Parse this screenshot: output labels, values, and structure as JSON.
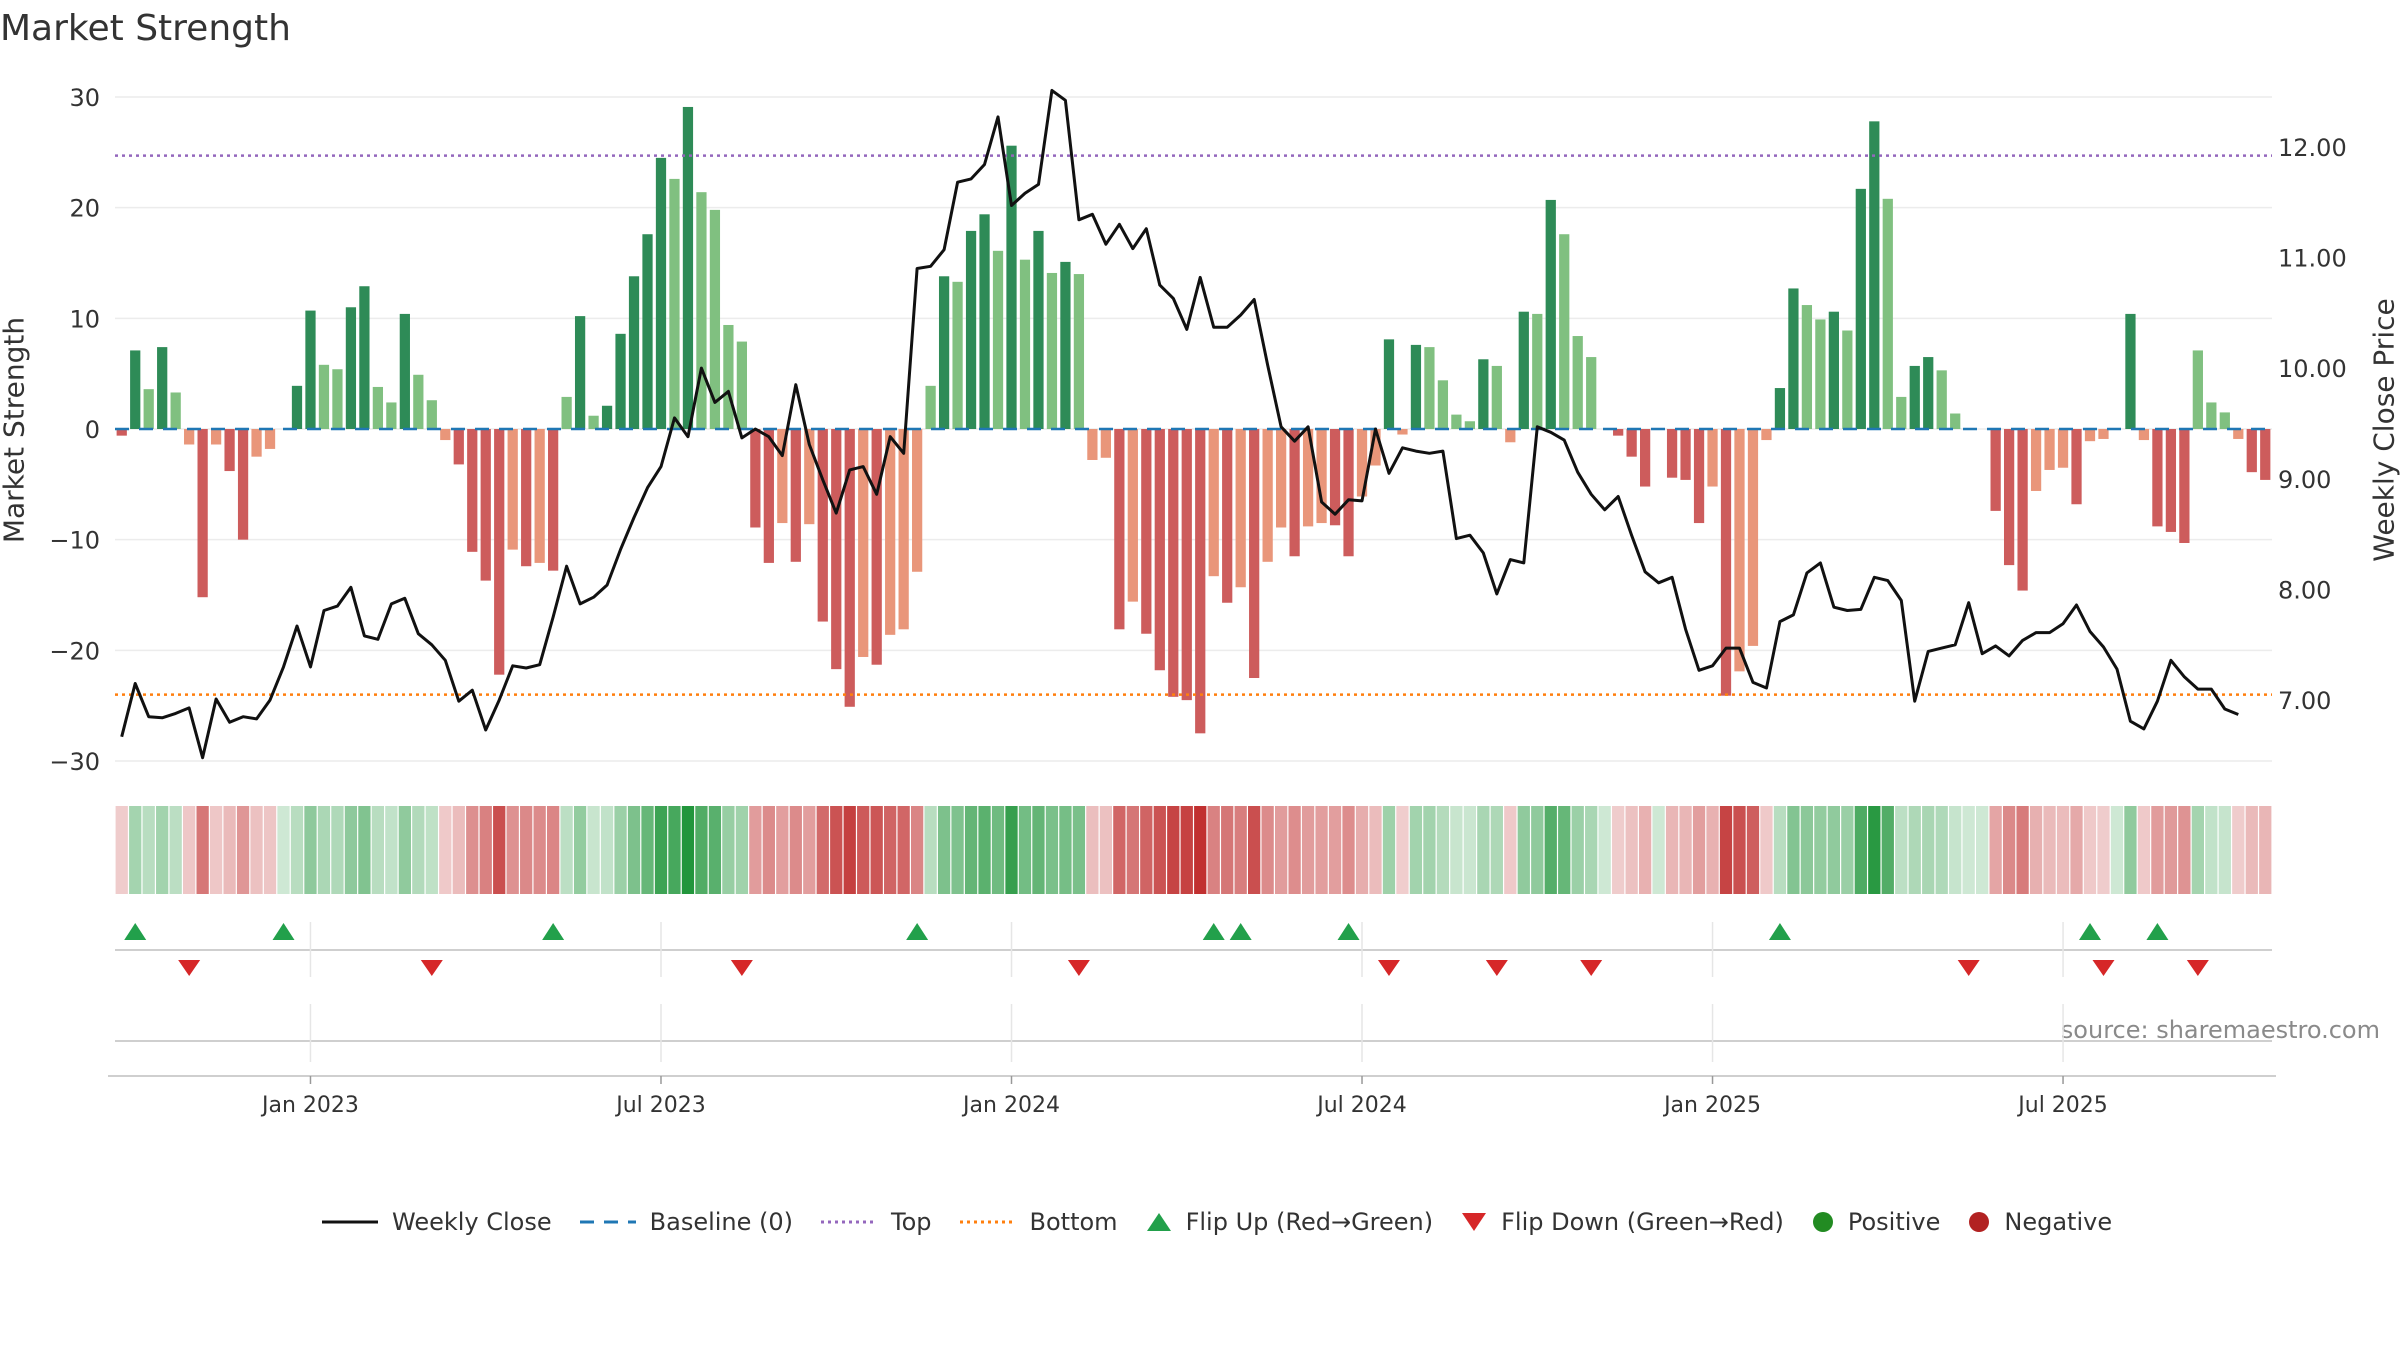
{
  "chart_data": {
    "type": "bar",
    "title": "Market Strength",
    "ylabel": "Market Strength",
    "y2label": "Weekly Close Price",
    "ylim": [
      -30,
      30
    ],
    "y2lim": [
      6.45,
      12.45
    ],
    "yticks": [
      "−30",
      "−20",
      "−10",
      "0",
      "10",
      "20",
      "30"
    ],
    "yticks_values": [
      -30,
      -20,
      -10,
      0,
      10,
      20,
      30
    ],
    "y2ticks": [
      "7.00",
      "8.00",
      "9.00",
      "10.00",
      "11.00",
      "12.00"
    ],
    "y2ticks_values": [
      7,
      8,
      9,
      10,
      11,
      12
    ],
    "x_month_labels": [
      "Jan 2023",
      "Jul 2023",
      "Jan 2024",
      "Jul 2024",
      "Jan 2025",
      "Jul 2025"
    ],
    "x_month_label_weeks": [
      14,
      40,
      66,
      92,
      118,
      144
    ],
    "top_threshold": 24.7,
    "bottom_threshold": -24.0,
    "strength": [
      -0.6,
      7.1,
      3.6,
      7.4,
      3.3,
      -1.4,
      -15.2,
      -1.4,
      -3.8,
      -10.0,
      -2.5,
      -1.8,
      0,
      3.9,
      10.7,
      5.8,
      5.4,
      11.0,
      12.9,
      3.8,
      2.4,
      10.4,
      4.9,
      2.6,
      -1.0,
      -3.2,
      -11.1,
      -13.7,
      -22.2,
      -10.9,
      -12.4,
      -12.1,
      -12.8,
      2.9,
      10.2,
      1.2,
      2.1,
      8.6,
      13.8,
      17.6,
      24.5,
      22.6,
      29.1,
      21.4,
      19.8,
      9.4,
      7.9,
      -8.9,
      -12.1,
      -8.5,
      -12.0,
      -8.6,
      -17.4,
      -21.7,
      -25.1,
      -20.6,
      -21.3,
      -18.6,
      -18.1,
      -12.9,
      3.9,
      13.8,
      13.3,
      17.9,
      19.4,
      16.1,
      25.6,
      15.3,
      17.9,
      14.1,
      15.1,
      14.0,
      -2.8,
      -2.6,
      -18.1,
      -15.6,
      -18.5,
      -21.8,
      -24.2,
      -24.5,
      -27.5,
      -13.3,
      -15.7,
      -14.3,
      -22.5,
      -12.0,
      -8.9,
      -11.5,
      -8.8,
      -8.5,
      -8.7,
      -11.5,
      -6.1,
      -3.3,
      8.1,
      -0.5,
      7.6,
      7.4,
      4.4,
      1.3,
      0.7,
      6.3,
      5.7,
      -1.2,
      10.6,
      10.4,
      20.7,
      17.6,
      8.4,
      6.5,
      0,
      -0.6,
      -2.5,
      -5.2,
      0,
      -4.4,
      -4.6,
      -8.5,
      -5.2,
      -24.1,
      -21.9,
      -19.6,
      -1.0,
      3.7,
      12.7,
      11.2,
      9.9,
      10.6,
      8.9,
      21.7,
      27.8,
      20.8,
      2.9,
      5.7,
      6.5,
      5.3,
      1.4,
      0,
      0,
      -7.4,
      -12.3,
      -14.6,
      -5.6,
      -3.7,
      -3.5,
      -6.8,
      -1.1,
      -0.9,
      0,
      10.4,
      -1.0,
      -8.8,
      -9.3,
      -10.3,
      7.1,
      2.4,
      1.5,
      -0.9,
      -3.9,
      -4.6
    ],
    "weekly_close": [
      6.67,
      7.15,
      6.85,
      6.84,
      6.88,
      6.93,
      6.48,
      7.01,
      6.8,
      6.85,
      6.83,
      7.0,
      7.3,
      7.67,
      7.3,
      7.81,
      7.85,
      8.02,
      7.58,
      7.55,
      7.87,
      7.92,
      7.6,
      7.5,
      7.36,
      6.99,
      7.09,
      6.73,
      7.0,
      7.31,
      7.29,
      7.32,
      7.75,
      8.21,
      7.87,
      7.93,
      8.04,
      8.36,
      8.65,
      8.92,
      9.11,
      9.55,
      9.38,
      10.0,
      9.69,
      9.79,
      9.37,
      9.45,
      9.38,
      9.21,
      9.85,
      9.31,
      8.99,
      8.69,
      9.08,
      9.11,
      8.86,
      9.38,
      9.23,
      10.9,
      10.92,
      11.07,
      11.68,
      11.71,
      11.84,
      12.27,
      11.47,
      11.58,
      11.66,
      12.51,
      12.42,
      11.34,
      11.39,
      11.12,
      11.3,
      11.08,
      11.26,
      10.75,
      10.63,
      10.35,
      10.82,
      10.37,
      10.37,
      10.48,
      10.62,
      10.03,
      9.47,
      9.34,
      9.47,
      8.79,
      8.68,
      8.81,
      8.8,
      9.45,
      9.05,
      9.28,
      9.25,
      9.23,
      9.25,
      8.46,
      8.49,
      8.33,
      7.96,
      8.27,
      8.24,
      9.47,
      9.42,
      9.35,
      9.06,
      8.86,
      8.72,
      8.84,
      8.49,
      8.16,
      8.06,
      8.11,
      7.64,
      7.27,
      7.31,
      7.47,
      7.47,
      7.16,
      7.11,
      7.71,
      7.77,
      8.15,
      8.24,
      7.84,
      7.81,
      7.82,
      8.11,
      8.08,
      7.9,
      6.99,
      7.44,
      7.47,
      7.5,
      7.88,
      7.42,
      7.49,
      7.4,
      7.54,
      7.61,
      7.61,
      7.69,
      7.86,
      7.62,
      7.48,
      7.28,
      6.81,
      6.74,
      6.99,
      7.36,
      7.21,
      7.1,
      7.1,
      6.92,
      6.87
    ],
    "flips_up_weeks": [
      1,
      12,
      32,
      59,
      81,
      83,
      91,
      123,
      146,
      151
    ],
    "flips_down_weeks": [
      5,
      23,
      46,
      71,
      94,
      102,
      109,
      137,
      147,
      154
    ],
    "series_names": [
      "Weekly Close",
      "Baseline (0)",
      "Top",
      "Bottom",
      "Flip Up (Red→Green)",
      "Flip Down (Green→Red)",
      "Positive",
      "Negative"
    ]
  },
  "colors": {
    "pos_dark": "#2e8b57",
    "pos_light": "#80c080",
    "neg_dark": "#cd5c5c",
    "neg_light": "#e9967a",
    "price_line": "#111111",
    "baseline": "#1f77b4",
    "top": "#9467bd",
    "bottom": "#ff7f0e",
    "flip_up": "#22a04b",
    "flip_down": "#d62728",
    "legend_positive": "#228b22",
    "legend_negative": "#b22222"
  },
  "source": "source: sharemaestro.com"
}
